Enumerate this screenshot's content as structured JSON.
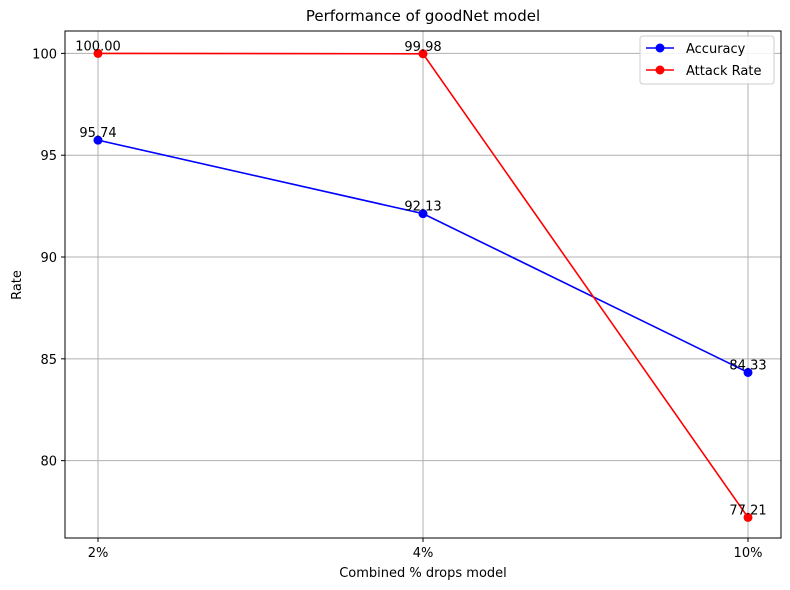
{
  "chart_data": {
    "type": "line",
    "title": "Performance of goodNet model",
    "xlabel": "Combined % drops model",
    "ylabel": "Rate",
    "categories": [
      "2%",
      "4%",
      "10%"
    ],
    "ylim": [
      76.2,
      101.1
    ],
    "yticks": [
      80,
      85,
      90,
      95,
      100
    ],
    "ytick_labels": [
      "80",
      "85",
      "90",
      "95",
      "100"
    ],
    "grid": true,
    "legend_position": "top-right",
    "series": [
      {
        "name": "Accuracy",
        "color": "#0000ff",
        "values": [
          95.74,
          92.13,
          84.33
        ],
        "labels": [
          "95.74",
          "92.13",
          "84.33"
        ]
      },
      {
        "name": "Attack Rate",
        "color": "#ff0000",
        "values": [
          100.0,
          99.98,
          77.21
        ],
        "labels": [
          "100.00",
          "99.98",
          "77.21"
        ]
      }
    ]
  }
}
